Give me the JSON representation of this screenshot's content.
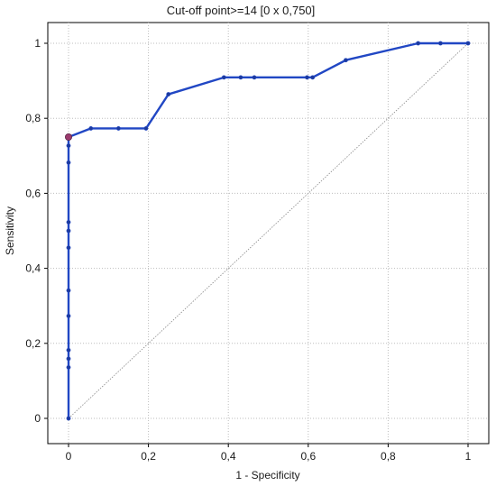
{
  "chart_data": {
    "type": "line",
    "title": "Cut-off point>=14 [0 x 0,750]",
    "xlabel": "1 - Specificity",
    "ylabel": "Sensitivity",
    "xlim": [
      0,
      1
    ],
    "ylim": [
      0,
      1
    ],
    "x_ticks": [
      "0",
      "0,2",
      "0,4",
      "0,6",
      "0,8",
      "1"
    ],
    "y_ticks": [
      "0",
      "0,2",
      "0,4",
      "0,6",
      "0,8",
      "1"
    ],
    "x_tick_values": [
      0,
      0.2,
      0.4,
      0.6,
      0.8,
      1
    ],
    "y_tick_values": [
      0,
      0.2,
      0.4,
      0.6,
      0.8,
      1
    ],
    "grid": true,
    "series": [
      {
        "color": "#2147c4",
        "points": [
          [
            0,
            0
          ],
          [
            0,
            0.136
          ],
          [
            0,
            0.159
          ],
          [
            0,
            0.182
          ],
          [
            0,
            0.273
          ],
          [
            0,
            0.341
          ],
          [
            0,
            0.455
          ],
          [
            0,
            0.5
          ],
          [
            0,
            0.523
          ],
          [
            0,
            0.682
          ],
          [
            0,
            0.727
          ],
          [
            0,
            0.75
          ],
          [
            0.056,
            0.773
          ],
          [
            0.125,
            0.773
          ],
          [
            0.194,
            0.773
          ],
          [
            0.25,
            0.864
          ],
          [
            0.389,
            0.909
          ],
          [
            0.431,
            0.909
          ],
          [
            0.465,
            0.909
          ],
          [
            0.597,
            0.909
          ],
          [
            0.611,
            0.909
          ],
          [
            0.694,
            0.955
          ],
          [
            0.875,
            1.0
          ],
          [
            0.931,
            1.0
          ],
          [
            1.0,
            1.0
          ]
        ]
      }
    ],
    "reference_line": {
      "from": [
        0,
        0
      ],
      "to": [
        1,
        1
      ],
      "color": "#888888"
    },
    "highlight_point": {
      "x": 0,
      "y": 0.75,
      "color": "#9b3b6e"
    }
  }
}
